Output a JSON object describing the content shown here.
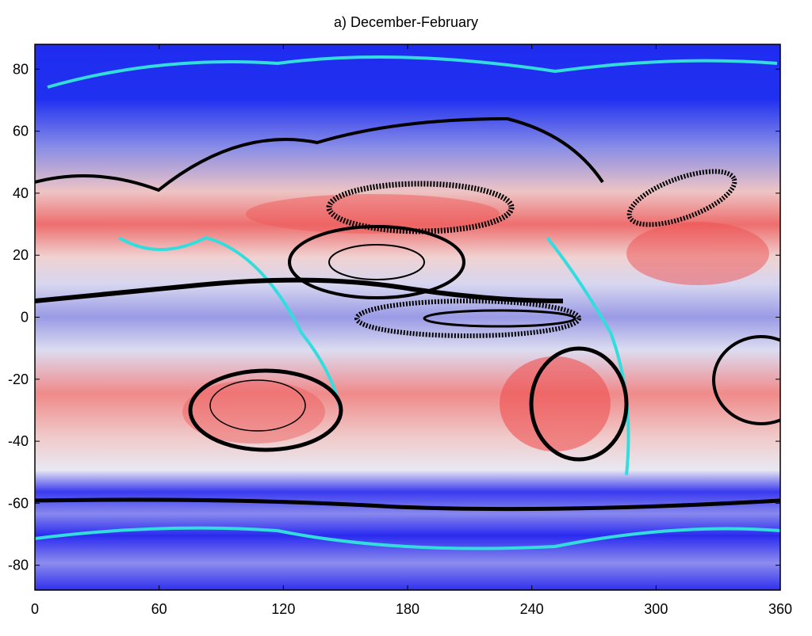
{
  "chart_data": {
    "type": "map",
    "title": "a) December-February",
    "xlim": [
      0,
      360
    ],
    "xticks": [
      0,
      60,
      120,
      180,
      240,
      300,
      360
    ],
    "ylim": [
      -88,
      88
    ],
    "yticks": [
      -80,
      -60,
      -40,
      -20,
      0,
      20,
      40,
      60,
      80
    ]
  }
}
